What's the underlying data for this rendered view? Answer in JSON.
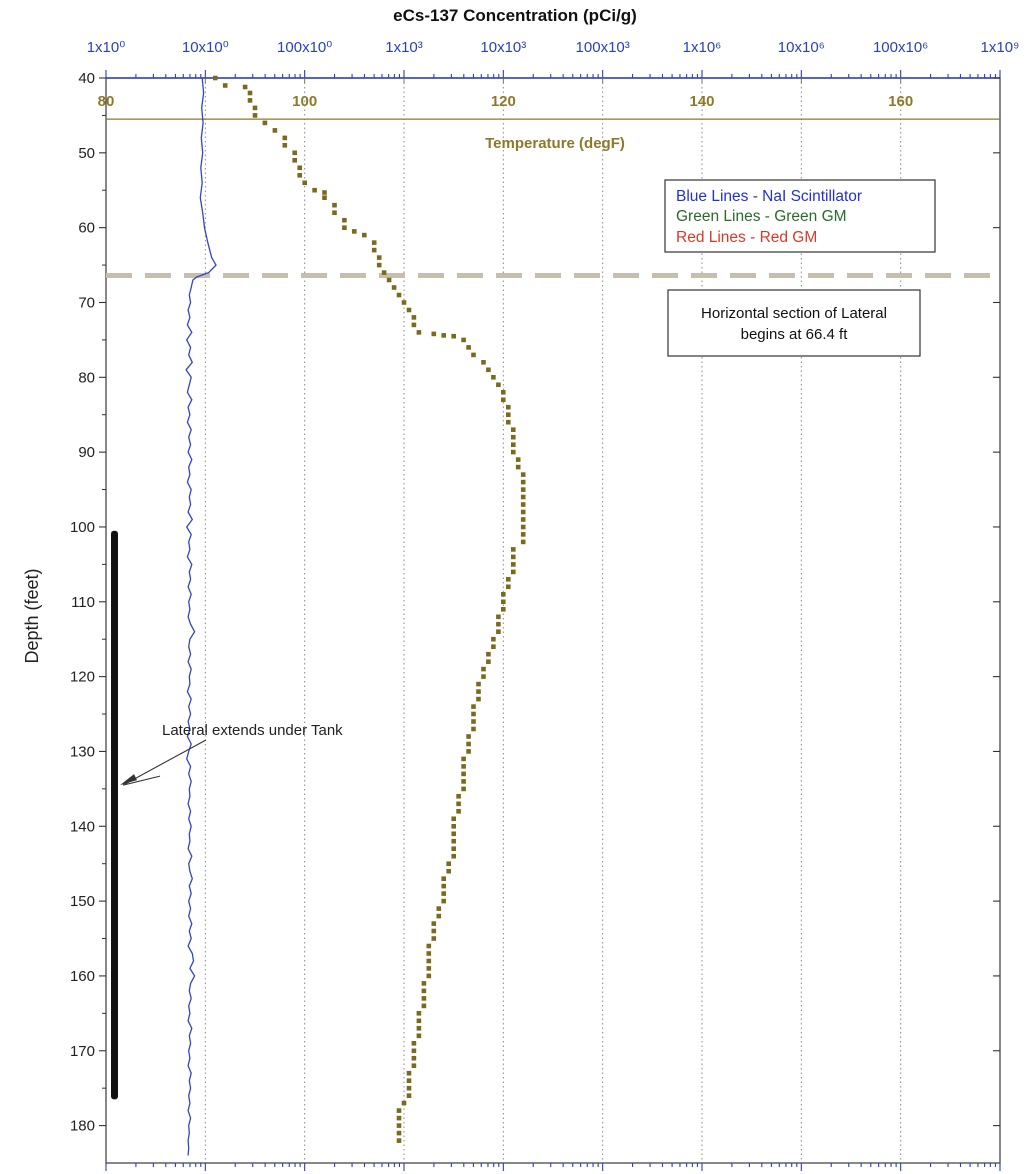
{
  "chart_data": {
    "type": "line",
    "title": "eCs-137 Concentration (pCi/g)",
    "ylabel": "Depth (feet)",
    "y_axis": {
      "range": [
        40,
        185
      ],
      "reversed": true,
      "ticks": [
        40,
        50,
        60,
        70,
        80,
        90,
        100,
        110,
        120,
        130,
        140,
        150,
        160,
        170,
        180
      ]
    },
    "x_axis_top": {
      "label": "eCs-137 Concentration (pCi/g)",
      "scale": "log",
      "range": [
        1,
        1000000000
      ],
      "ticks": [
        1,
        10,
        100,
        1000,
        10000,
        100000,
        1000000,
        10000000,
        100000000,
        1000000000
      ],
      "tick_labels": [
        "1x10⁰",
        "10x10⁰",
        "100x10⁰",
        "1x10³",
        "10x10³",
        "100x10³",
        "1x10⁶",
        "10x10⁶",
        "100x10⁶",
        "1x10⁹"
      ]
    },
    "x_axis_temp": {
      "label": "Temperature (degF)",
      "range": [
        80,
        170
      ],
      "ticks": [
        80,
        100,
        120,
        140,
        160
      ],
      "tick_labels": [
        "80",
        "100",
        "120",
        "140",
        "160"
      ]
    },
    "grid": "vertical dotted",
    "colors": {
      "concentration_axis": "#2b3fbf",
      "temperature_axis": "#8b7a2a",
      "nai_line": "#3344c8",
      "temperature_points": "#7a6a1e",
      "dashed_marker": "#c8beb0",
      "lateral_bar": "#111111"
    },
    "series": [
      {
        "kind": "nai_concentration",
        "x_axis": "concentration",
        "points": [
          [
            9.3,
            40
          ],
          [
            9.6,
            42
          ],
          [
            9.2,
            44
          ],
          [
            9.5,
            46
          ],
          [
            9.1,
            48
          ],
          [
            9.4,
            50
          ],
          [
            9.0,
            52
          ],
          [
            9.3,
            54
          ],
          [
            8.9,
            56
          ],
          [
            9.4,
            58
          ],
          [
            9.8,
            60
          ],
          [
            10.6,
            62
          ],
          [
            11.6,
            64
          ],
          [
            12.8,
            65
          ],
          [
            10.8,
            66
          ],
          [
            8.2,
            66.6
          ],
          [
            7.5,
            67
          ],
          [
            7.2,
            68
          ],
          [
            6.9,
            69
          ],
          [
            7.1,
            70
          ],
          [
            6.7,
            71
          ],
          [
            7.0,
            72
          ],
          [
            6.6,
            73
          ],
          [
            7.3,
            74
          ],
          [
            6.5,
            75
          ],
          [
            7.1,
            76
          ],
          [
            6.8,
            77
          ],
          [
            7.4,
            78
          ],
          [
            6.4,
            79
          ],
          [
            7.2,
            80
          ],
          [
            6.9,
            81
          ],
          [
            6.6,
            82
          ],
          [
            7.3,
            83
          ],
          [
            6.7,
            84
          ],
          [
            7.0,
            85
          ],
          [
            6.6,
            86
          ],
          [
            7.2,
            87
          ],
          [
            6.8,
            88
          ],
          [
            7.1,
            89
          ],
          [
            6.7,
            90
          ],
          [
            7.3,
            91
          ],
          [
            6.8,
            92
          ],
          [
            7.0,
            93
          ],
          [
            6.6,
            94
          ],
          [
            7.2,
            95
          ],
          [
            6.9,
            96
          ],
          [
            7.1,
            97
          ],
          [
            6.7,
            98
          ],
          [
            7.4,
            99
          ],
          [
            6.5,
            100
          ],
          [
            7.2,
            101
          ],
          [
            6.8,
            102
          ],
          [
            7.0,
            103
          ],
          [
            6.6,
            104
          ],
          [
            7.3,
            105
          ],
          [
            6.9,
            106
          ],
          [
            7.1,
            107
          ],
          [
            6.7,
            108
          ],
          [
            7.2,
            109
          ],
          [
            6.8,
            110
          ],
          [
            7.0,
            111
          ],
          [
            6.7,
            112
          ],
          [
            7.1,
            113
          ],
          [
            7.8,
            114
          ],
          [
            7.0,
            115
          ],
          [
            6.8,
            116
          ],
          [
            7.1,
            117
          ],
          [
            6.7,
            118
          ],
          [
            7.2,
            119
          ],
          [
            6.9,
            120
          ],
          [
            7.0,
            121
          ],
          [
            6.6,
            122
          ],
          [
            7.2,
            123
          ],
          [
            6.8,
            124
          ],
          [
            7.1,
            125
          ],
          [
            6.7,
            126
          ],
          [
            7.0,
            127
          ],
          [
            6.6,
            128
          ],
          [
            7.2,
            129
          ],
          [
            6.8,
            130
          ],
          [
            6.5,
            131
          ],
          [
            7.1,
            132
          ],
          [
            6.8,
            133
          ],
          [
            7.2,
            134
          ],
          [
            6.9,
            135
          ],
          [
            7.0,
            136
          ],
          [
            6.7,
            137
          ],
          [
            7.1,
            138
          ],
          [
            6.8,
            139
          ],
          [
            7.2,
            140
          ],
          [
            6.9,
            141
          ],
          [
            7.0,
            142
          ],
          [
            6.7,
            143
          ],
          [
            7.3,
            144
          ],
          [
            6.8,
            145
          ],
          [
            7.0,
            146
          ],
          [
            7.4,
            147
          ],
          [
            6.9,
            148
          ],
          [
            7.2,
            149
          ],
          [
            6.8,
            150
          ],
          [
            7.1,
            151
          ],
          [
            6.8,
            152
          ],
          [
            7.3,
            153
          ],
          [
            6.9,
            154
          ],
          [
            7.2,
            155
          ],
          [
            6.7,
            156
          ],
          [
            7.4,
            157
          ],
          [
            7.6,
            158
          ],
          [
            7.0,
            159
          ],
          [
            7.8,
            160
          ],
          [
            7.1,
            161
          ],
          [
            6.9,
            162
          ],
          [
            7.2,
            163
          ],
          [
            6.8,
            164
          ],
          [
            7.0,
            165
          ],
          [
            6.7,
            166
          ],
          [
            7.3,
            167
          ],
          [
            6.9,
            168
          ],
          [
            7.1,
            169
          ],
          [
            6.8,
            170
          ],
          [
            7.0,
            171
          ],
          [
            6.7,
            172
          ],
          [
            7.2,
            173
          ],
          [
            6.9,
            174
          ],
          [
            7.1,
            175
          ],
          [
            6.8,
            176
          ],
          [
            7.0,
            177
          ],
          [
            6.7,
            178
          ],
          [
            7.1,
            179
          ],
          [
            6.8,
            180
          ],
          [
            6.9,
            181
          ],
          [
            6.7,
            182
          ],
          [
            6.8,
            183
          ],
          [
            6.7,
            184
          ]
        ]
      },
      {
        "kind": "temperature",
        "x_axis": "temperature",
        "points": [
          [
            91,
            40
          ],
          [
            92,
            41
          ],
          [
            94,
            41.2
          ],
          [
            94.5,
            42
          ],
          [
            94.5,
            43
          ],
          [
            95,
            44
          ],
          [
            95,
            45
          ],
          [
            96,
            46
          ],
          [
            97,
            47
          ],
          [
            98,
            48
          ],
          [
            98,
            49
          ],
          [
            99,
            50
          ],
          [
            99,
            51
          ],
          [
            99.5,
            52
          ],
          [
            99.5,
            53
          ],
          [
            100,
            54
          ],
          [
            101,
            55
          ],
          [
            102,
            55.3
          ],
          [
            102,
            56
          ],
          [
            103,
            57
          ],
          [
            103,
            58
          ],
          [
            104,
            59
          ],
          [
            104,
            60
          ],
          [
            105,
            60.5
          ],
          [
            106,
            61
          ],
          [
            107,
            62
          ],
          [
            107,
            63
          ],
          [
            107.5,
            64
          ],
          [
            107.5,
            65
          ],
          [
            108,
            66
          ],
          [
            108.5,
            67
          ],
          [
            109,
            68
          ],
          [
            109.5,
            69
          ],
          [
            110,
            70
          ],
          [
            110.5,
            71
          ],
          [
            111,
            72
          ],
          [
            111,
            73
          ],
          [
            111.5,
            74
          ],
          [
            113,
            74.2
          ],
          [
            114,
            74.4
          ],
          [
            115,
            74.5
          ],
          [
            116,
            75
          ],
          [
            116.5,
            76
          ],
          [
            117,
            77
          ],
          [
            118,
            78
          ],
          [
            118.5,
            79
          ],
          [
            119,
            80
          ],
          [
            119.5,
            81
          ],
          [
            120,
            82
          ],
          [
            120,
            83
          ],
          [
            120.5,
            84
          ],
          [
            120.5,
            85
          ],
          [
            120.5,
            86
          ],
          [
            121,
            87
          ],
          [
            121,
            88
          ],
          [
            121,
            89
          ],
          [
            121,
            90
          ],
          [
            121.5,
            91
          ],
          [
            121.5,
            92
          ],
          [
            122,
            93
          ],
          [
            122,
            94
          ],
          [
            122,
            95
          ],
          [
            122,
            96
          ],
          [
            122,
            97
          ],
          [
            122,
            98
          ],
          [
            122,
            99
          ],
          [
            122,
            100
          ],
          [
            122,
            101
          ],
          [
            122,
            102
          ],
          [
            121,
            103
          ],
          [
            121,
            104
          ],
          [
            121,
            105
          ],
          [
            121,
            106
          ],
          [
            120.5,
            107
          ],
          [
            120.5,
            108
          ],
          [
            120,
            109
          ],
          [
            120,
            110
          ],
          [
            120,
            111
          ],
          [
            119.5,
            112
          ],
          [
            119.5,
            113
          ],
          [
            119.5,
            114
          ],
          [
            119,
            115
          ],
          [
            119,
            116
          ],
          [
            118.5,
            117
          ],
          [
            118.5,
            118
          ],
          [
            118,
            119
          ],
          [
            118,
            120
          ],
          [
            117.5,
            121
          ],
          [
            117.5,
            122
          ],
          [
            117.5,
            123
          ],
          [
            117,
            124
          ],
          [
            117,
            125
          ],
          [
            117,
            126
          ],
          [
            117,
            127
          ],
          [
            116.5,
            128
          ],
          [
            116.5,
            129
          ],
          [
            116.5,
            130
          ],
          [
            116,
            131
          ],
          [
            116,
            132
          ],
          [
            116,
            133
          ],
          [
            116,
            134
          ],
          [
            116,
            135
          ],
          [
            115.5,
            136
          ],
          [
            115.5,
            137
          ],
          [
            115.5,
            138
          ],
          [
            115,
            139
          ],
          [
            115,
            140
          ],
          [
            115,
            141
          ],
          [
            115,
            142
          ],
          [
            115,
            143
          ],
          [
            115,
            144
          ],
          [
            114.5,
            145
          ],
          [
            114.5,
            146
          ],
          [
            114,
            147
          ],
          [
            114,
            148
          ],
          [
            114,
            149
          ],
          [
            114,
            150
          ],
          [
            113.5,
            151
          ],
          [
            113.5,
            152
          ],
          [
            113,
            153
          ],
          [
            113,
            154
          ],
          [
            113,
            155
          ],
          [
            112.5,
            156
          ],
          [
            112.5,
            157
          ],
          [
            112.5,
            158
          ],
          [
            112.5,
            159
          ],
          [
            112.5,
            160
          ],
          [
            112,
            161
          ],
          [
            112,
            162
          ],
          [
            112,
            163
          ],
          [
            112,
            164
          ],
          [
            111.5,
            165
          ],
          [
            111.5,
            166
          ],
          [
            111.5,
            167
          ],
          [
            111.5,
            168
          ],
          [
            111,
            169
          ],
          [
            111,
            170
          ],
          [
            111,
            171
          ],
          [
            111,
            172
          ],
          [
            110.5,
            173
          ],
          [
            110.5,
            174
          ],
          [
            110.5,
            175
          ],
          [
            110.5,
            176
          ],
          [
            110,
            177
          ],
          [
            109.5,
            178
          ],
          [
            109.5,
            179
          ],
          [
            109.5,
            180
          ],
          [
            109.5,
            181
          ],
          [
            109.5,
            182
          ]
        ]
      }
    ],
    "legend": {
      "position": "upper-right",
      "entries": [
        {
          "text": "Blue Lines - NaI Scintillator",
          "color": "#2233cc"
        },
        {
          "text": "Green Lines - Green GM",
          "color": "#2a6a2a"
        },
        {
          "text": "Red Lines - Red GM",
          "color": "#d83a2a"
        }
      ]
    },
    "annotations": {
      "horizontal_section": {
        "depth": 66.4,
        "lines": [
          "Horizontal section of Lateral",
          "begins at 66.4 ft"
        ]
      },
      "temperature_separator_depth": 45.5,
      "lateral_bar": {
        "from_depth": 100.5,
        "to_depth": 176.5,
        "text": "Lateral extends under Tank",
        "arrow_to_depth": 134.5
      }
    }
  }
}
